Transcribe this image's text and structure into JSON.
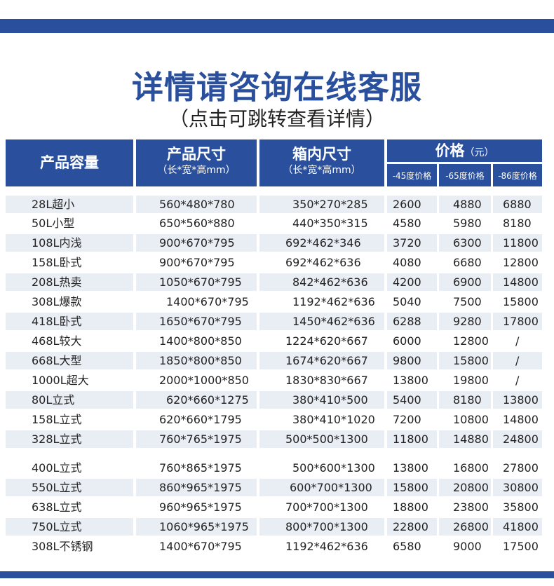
{
  "header": {
    "title": "详情请咨询在线客服",
    "subtitle": "（点击可跳转查看详情）"
  },
  "table": {
    "columns": {
      "capacity": "产品容量",
      "product_size": "产品尺寸",
      "product_size_sub": "（长*宽*高mm）",
      "inner_size": "箱内尺寸",
      "inner_size_sub": "（长*宽*高mm）",
      "price": "价格",
      "price_unit": "（元）",
      "price_45": "-45度价格",
      "price_65": "-65度价格",
      "price_86": "-86度价格"
    },
    "rows": [
      {
        "capacity": "28L超小",
        "product": "560*480*780",
        "inner": "350*270*285",
        "p45": "2600",
        "p65": "4880",
        "p86": "6880"
      },
      {
        "capacity": "50L小型",
        "product": "650*560*880",
        "inner": "440*350*315",
        "p45": "4580",
        "p65": "5980",
        "p86": "8180"
      },
      {
        "capacity": "108L内浅",
        "product": "900*670*795",
        "inner": "692*462*346",
        "p45": "3720",
        "p65": "6300",
        "p86": "11800"
      },
      {
        "capacity": "158L卧式",
        "product": "900*670*795",
        "inner": "692*462*636",
        "p45": "4080",
        "p65": "6680",
        "p86": "12800"
      },
      {
        "capacity": "208L热卖",
        "product": "1050*670*795",
        "inner": "842*462*636",
        "p45": "4200",
        "p65": "6900",
        "p86": "14800"
      },
      {
        "capacity": "308L爆款",
        "product": "1400*670*795",
        "inner": "1192*462*636",
        "p45": "5040",
        "p65": "7500",
        "p86": "15800"
      },
      {
        "capacity": "418L卧式",
        "product": "1650*670*795",
        "inner": "1450*462*636",
        "p45": "6288",
        "p65": "9280",
        "p86": "17800"
      },
      {
        "capacity": "468L较大",
        "product": "1400*800*850",
        "inner": "1224*620*667",
        "p45": "6000",
        "p65": "12800",
        "p86": "/"
      },
      {
        "capacity": "668L大型",
        "product": "1850*800*850",
        "inner": "1674*620*667",
        "p45": "9800",
        "p65": "15800",
        "p86": "/"
      },
      {
        "capacity": "1000L超大",
        "product": "2000*1000*850",
        "inner": "1830*830*667",
        "p45": "13800",
        "p65": "19800",
        "p86": "/"
      },
      {
        "capacity": "80L立式",
        "product": "620*660*1275",
        "inner": "380*410*500",
        "p45": "5400",
        "p65": "8180",
        "p86": "13800"
      },
      {
        "capacity": "158L立式",
        "product": "620*660*1795",
        "inner": "380*410*1020",
        "p45": "7200",
        "p65": "10800",
        "p86": "14800"
      },
      {
        "capacity": "328L立式",
        "product": "760*765*1975",
        "inner": "500*500*1300",
        "p45": "11800",
        "p65": "14880",
        "p86": "24800"
      },
      {
        "capacity": "400L立式",
        "product": "760*865*1975",
        "inner": "500*600*1300",
        "p45": "13800",
        "p65": "16800",
        "p86": "27800"
      },
      {
        "capacity": "550L立式",
        "product": "860*965*1975",
        "inner": "600*700*1300",
        "p45": "15800",
        "p65": "20800",
        "p86": "30800"
      },
      {
        "capacity": "638L立式",
        "product": "960*965*1975",
        "inner": "700*700*1300",
        "p45": "18800",
        "p65": "23800",
        "p86": "35800"
      },
      {
        "capacity": "750L立式",
        "product": "1060*965*1975",
        "inner": "800*700*1300",
        "p45": "22800",
        "p65": "26800",
        "p86": "41800"
      },
      {
        "capacity": "308L不锈钢",
        "product": "1400*670*795",
        "inner": "1192*462*636",
        "p45": "6580",
        "p65": "9000",
        "p86": "17500"
      }
    ]
  }
}
